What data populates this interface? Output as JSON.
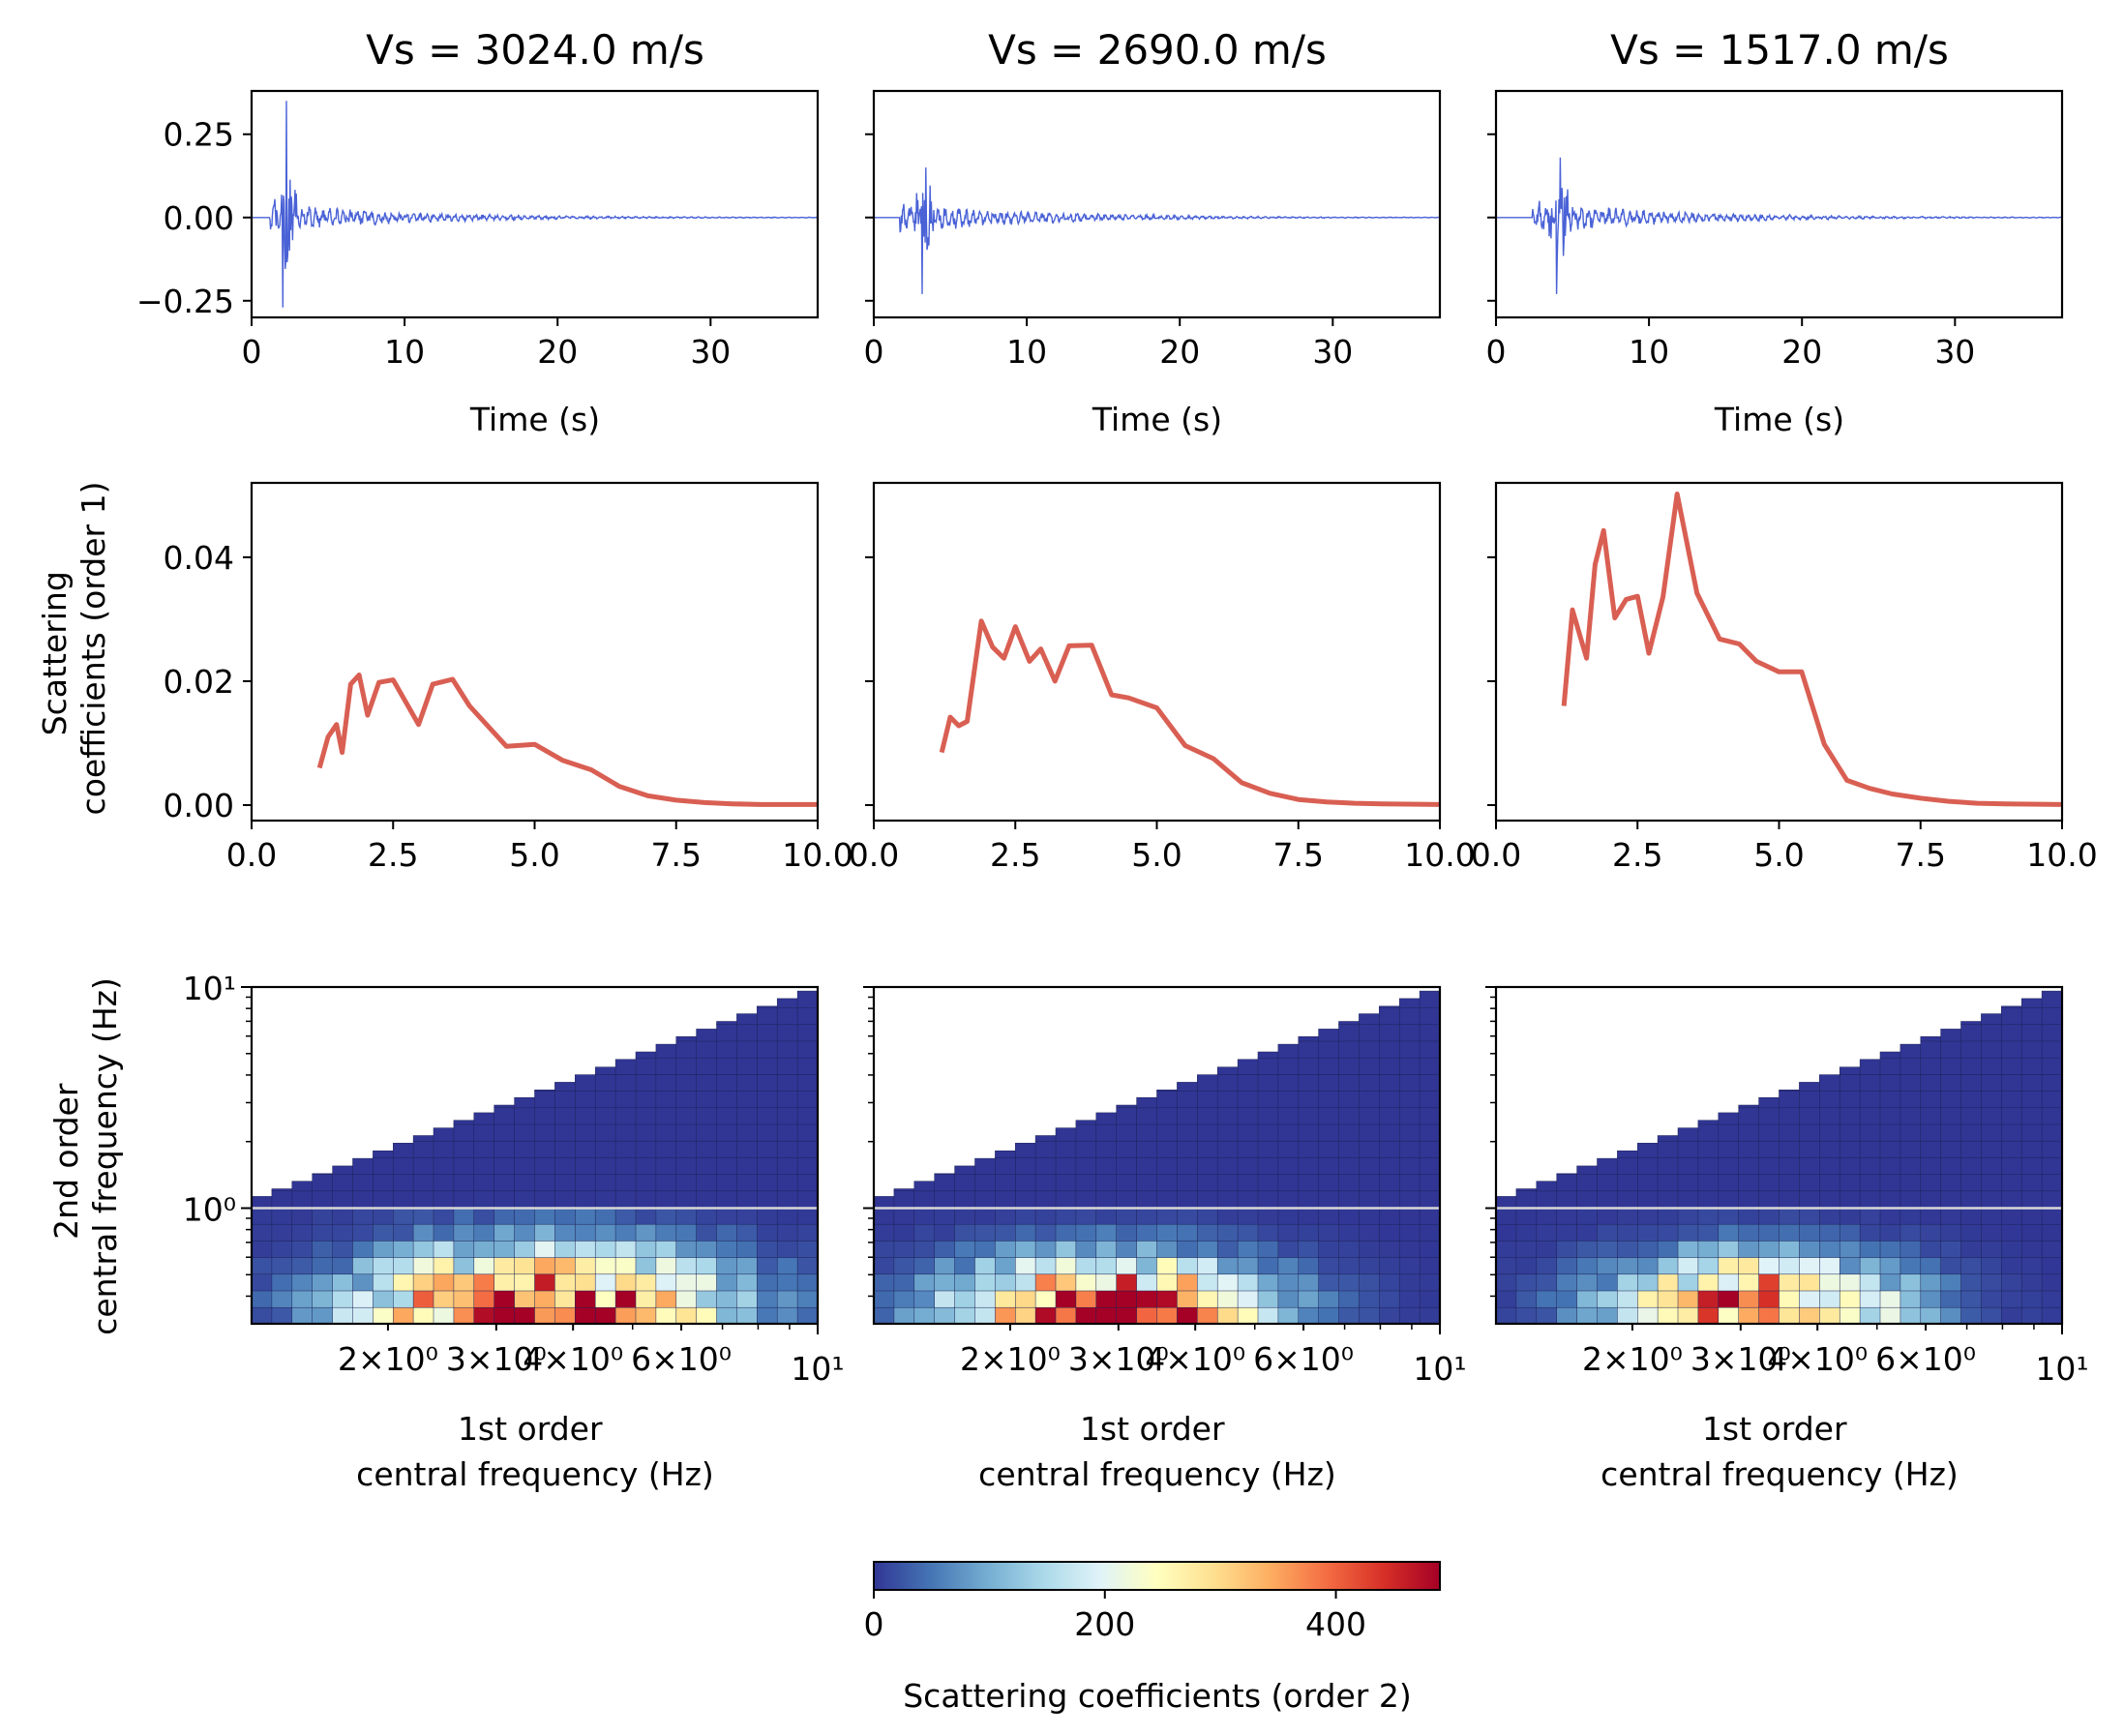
{
  "figure": {
    "colorbar": {
      "label": "Scattering coefficients (order 2)",
      "ticks": [
        "0",
        "200",
        "400"
      ],
      "range": [
        0,
        490
      ],
      "colormap": "RdYlBu_r",
      "colors": [
        "#313695",
        "#4575b4",
        "#74add1",
        "#abd9e9",
        "#e0f3f8",
        "#ffffbf",
        "#fee090",
        "#fdae61",
        "#f46d43",
        "#d73027",
        "#a50026"
      ]
    }
  },
  "chart_data": [
    {
      "type": "line",
      "row": "waveform",
      "col": 0,
      "title": "Vs =  3024.0 m/s",
      "xlabel": "Time (s)",
      "ylabel": "",
      "xlim": [
        0,
        37
      ],
      "ylim": [
        -0.3,
        0.38
      ],
      "xticks": [
        "0",
        "10",
        "20",
        "30"
      ],
      "yticks": [
        "0.25",
        "0.00",
        "−0.25"
      ],
      "color": "#4a62d6",
      "waveform": {
        "onset": 1.2,
        "peak_time": 2.3,
        "peak_max": 0.35,
        "peak_min": -0.27,
        "coda_amplitude": 0.04,
        "decay": 9.0
      }
    },
    {
      "type": "line",
      "row": "waveform",
      "col": 1,
      "title": "Vs =  2690.0 m/s",
      "xlabel": "Time (s)",
      "ylabel": "",
      "xlim": [
        0,
        37
      ],
      "ylim": [
        -0.3,
        0.38
      ],
      "xticks": [
        "0",
        "10",
        "20",
        "30"
      ],
      "color": "#4a62d6",
      "waveform": {
        "onset": 1.7,
        "peak_time": 3.4,
        "peak_max": 0.15,
        "peak_min": -0.23,
        "coda_amplitude": 0.045,
        "decay": 8.5
      }
    },
    {
      "type": "line",
      "row": "waveform",
      "col": 2,
      "title": "Vs =  1517.0 m/s",
      "xlabel": "Time (s)",
      "ylabel": "",
      "xlim": [
        0,
        37
      ],
      "ylim": [
        -0.3,
        0.38
      ],
      "xticks": [
        "0",
        "10",
        "20",
        "30"
      ],
      "color": "#4a62d6",
      "waveform": {
        "onset": 2.4,
        "peak_time": 4.2,
        "peak_max": 0.18,
        "peak_min": -0.23,
        "coda_amplitude": 0.045,
        "decay": 9.0
      }
    },
    {
      "type": "line",
      "row": "order1",
      "col": 0,
      "xlabel": "",
      "ylabel": "Scattering\ncoefficients (order 1)",
      "xlim": [
        0,
        10
      ],
      "ylim": [
        -0.0025,
        0.052
      ],
      "xticks": [
        "0.0",
        "2.5",
        "5.0",
        "7.5",
        "10.0"
      ],
      "yticks": [
        "0.04",
        "0.02",
        "0.00"
      ],
      "color": "#d95f53",
      "x": [
        1.2,
        1.35,
        1.5,
        1.6,
        1.75,
        1.9,
        2.05,
        2.25,
        2.5,
        2.95,
        3.2,
        3.55,
        3.85,
        4.5,
        5.0,
        5.5,
        6.0,
        6.5,
        7.0,
        7.5,
        8.0,
        8.5,
        9.0,
        10.0
      ],
      "y": [
        0.006,
        0.011,
        0.013,
        0.0085,
        0.0195,
        0.021,
        0.0145,
        0.0198,
        0.0202,
        0.013,
        0.0195,
        0.0203,
        0.016,
        0.0095,
        0.0098,
        0.0072,
        0.0057,
        0.003,
        0.0015,
        0.0008,
        0.0004,
        0.0002,
        0.0001,
        0.0001
      ]
    },
    {
      "type": "line",
      "row": "order1",
      "col": 1,
      "xlabel": "",
      "ylabel": "",
      "xlim": [
        0,
        10
      ],
      "ylim": [
        -0.0025,
        0.052
      ],
      "xticks": [
        "0.0",
        "2.5",
        "5.0",
        "7.5",
        "10.0"
      ],
      "color": "#d95f53",
      "x": [
        1.2,
        1.35,
        1.5,
        1.65,
        1.9,
        2.1,
        2.3,
        2.5,
        2.75,
        2.95,
        3.2,
        3.45,
        3.85,
        4.2,
        4.5,
        5.0,
        5.5,
        6.0,
        6.5,
        7.0,
        7.5,
        8.0,
        8.5,
        9.0,
        10.0
      ],
      "y": [
        0.0085,
        0.0142,
        0.0128,
        0.0135,
        0.0297,
        0.0255,
        0.0237,
        0.0288,
        0.0232,
        0.0252,
        0.02,
        0.0257,
        0.0258,
        0.0178,
        0.0173,
        0.0157,
        0.0096,
        0.0075,
        0.0036,
        0.0019,
        0.0009,
        0.0005,
        0.0003,
        0.0002,
        0.0001
      ]
    },
    {
      "type": "line",
      "row": "order1",
      "col": 2,
      "xlabel": "",
      "ylabel": "",
      "xlim": [
        0,
        10
      ],
      "ylim": [
        -0.0025,
        0.052
      ],
      "xticks": [
        "0.0",
        "2.5",
        "5.0",
        "7.5",
        "10.0"
      ],
      "color": "#d95f53",
      "x": [
        1.2,
        1.35,
        1.6,
        1.75,
        1.9,
        2.1,
        2.3,
        2.5,
        2.7,
        2.95,
        3.2,
        3.55,
        3.95,
        4.3,
        4.6,
        5.0,
        5.4,
        5.8,
        6.2,
        6.6,
        7.0,
        7.5,
        8.0,
        8.5,
        9.0,
        10.0
      ],
      "y": [
        0.016,
        0.0315,
        0.0237,
        0.0388,
        0.0443,
        0.0302,
        0.0332,
        0.0337,
        0.0245,
        0.0336,
        0.0502,
        0.0342,
        0.0268,
        0.026,
        0.0232,
        0.0215,
        0.0215,
        0.0098,
        0.004,
        0.0027,
        0.0018,
        0.0011,
        0.0006,
        0.0003,
        0.0002,
        0.0001
      ]
    },
    {
      "type": "heatmap",
      "row": "order2",
      "col": 0,
      "xlabel": "1st order\ncentral frequency (Hz)",
      "ylabel": "2nd order\ncentral frequency (Hz)",
      "xscale": "log",
      "yscale": "log",
      "xlim": [
        1.2,
        10
      ],
      "ylim": [
        0.3,
        10
      ],
      "xtick_labels": [
        "2×10⁰",
        "3×10⁰",
        "4×10⁰",
        "6×10⁰",
        "10¹"
      ],
      "ytick_labels": [
        "10¹",
        "10⁰"
      ],
      "reference_line_y": 1.0,
      "hotspot": {
        "f1": 3.6,
        "f2": 0.33,
        "peak": 490,
        "f1_spread": 0.28,
        "f2_spread": 0.28
      }
    },
    {
      "type": "heatmap",
      "row": "order2",
      "col": 1,
      "xlabel": "1st order\ncentral frequency (Hz)",
      "ylabel": "",
      "xscale": "log",
      "yscale": "log",
      "xlim": [
        1.2,
        10
      ],
      "ylim": [
        0.3,
        10
      ],
      "xtick_labels": [
        "2×10⁰",
        "3×10⁰",
        "4×10⁰",
        "6×10⁰",
        "10¹"
      ],
      "reference_line_y": 1.0,
      "hotspot": {
        "f1": 2.9,
        "f2": 0.33,
        "peak": 480,
        "f1_spread": 0.24,
        "f2_spread": 0.24
      }
    },
    {
      "type": "heatmap",
      "row": "order2",
      "col": 2,
      "xlabel": "1st order\ncentral frequency (Hz)",
      "ylabel": "",
      "xscale": "log",
      "yscale": "log",
      "xlim": [
        1.2,
        10
      ],
      "ylim": [
        0.3,
        10
      ],
      "xtick_labels": [
        "2×10⁰",
        "3×10⁰",
        "4×10⁰",
        "6×10⁰",
        "10¹"
      ],
      "reference_line_y": 1.0,
      "hotspot": {
        "f1": 3.2,
        "f2": 0.36,
        "peak": 400,
        "f1_spread": 0.22,
        "f2_spread": 0.22
      }
    }
  ]
}
